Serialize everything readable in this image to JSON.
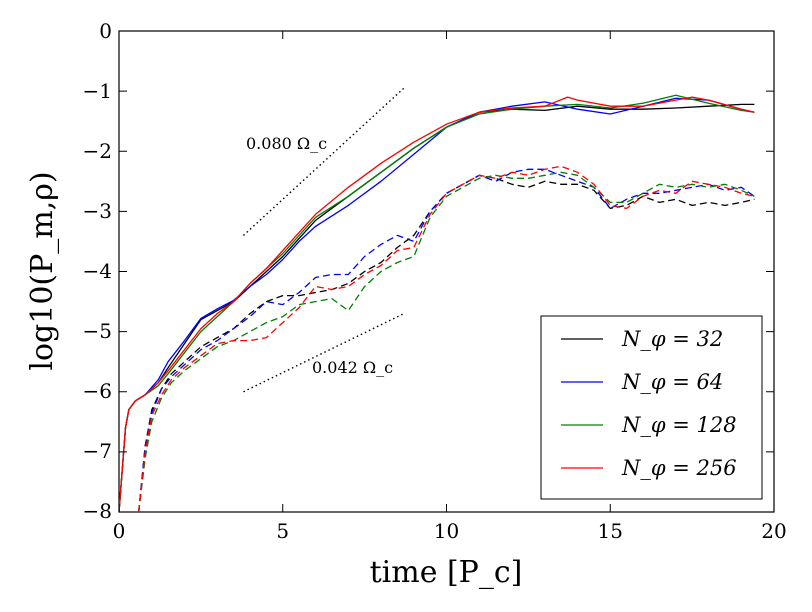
{
  "chart_data": {
    "type": "line",
    "xlabel": "time [P_c]",
    "ylabel": "log10(P_m,ρ)",
    "xlim": [
      0,
      20
    ],
    "ylim": [
      -8,
      0
    ],
    "x_ticks": [
      "0",
      "5",
      "10",
      "15",
      "20"
    ],
    "y_ticks": [
      "0",
      "−1",
      "−2",
      "−3",
      "−4",
      "−5",
      "−6",
      "−7",
      "−8"
    ],
    "grid": false,
    "legend_position": "lower-right",
    "legend": [
      "N_φ = 32",
      "N_φ = 64",
      "N_φ = 128",
      "N_φ = 256"
    ],
    "colors": {
      "N32": "#000000",
      "N64": "#0000ff",
      "N128": "#008000",
      "N256": "#ff0000",
      "reference": "#000000"
    },
    "annotations": [
      {
        "text": "0.080 Ω_c",
        "slope_per_Pc": 0.08
      },
      {
        "text": "0.042 Ω_c",
        "slope_per_Pc": 0.042
      }
    ],
    "reference_lines": [
      {
        "label": "0.080 Ω_c",
        "x": [
          3.8,
          8.7
        ],
        "y": [
          -3.4,
          -0.95
        ]
      },
      {
        "label": "0.042 Ω_c",
        "x": [
          3.8,
          8.7
        ],
        "y": [
          -6.0,
          -4.7
        ]
      }
    ],
    "series": [
      {
        "key": "N32",
        "style": "solid",
        "x": [
          0,
          0.2,
          0.3,
          0.5,
          0.8,
          1.2,
          1.5,
          2.0,
          2.5,
          3.0,
          3.5,
          4.0,
          4.5,
          5.0,
          5.5,
          6.0,
          7.0,
          8.0,
          9.0,
          10.0,
          11.0,
          12.0,
          13.0,
          14.0,
          15.0,
          16.0,
          17.0,
          18.0,
          19.0,
          19.4
        ],
        "y": [
          -8.0,
          -6.6,
          -6.3,
          -6.15,
          -6.05,
          -5.85,
          -5.6,
          -5.2,
          -4.8,
          -4.65,
          -4.5,
          -4.25,
          -4.0,
          -3.75,
          -3.45,
          -3.15,
          -2.75,
          -2.35,
          -1.95,
          -1.6,
          -1.35,
          -1.3,
          -1.32,
          -1.25,
          -1.3,
          -1.3,
          -1.28,
          -1.25,
          -1.22,
          -1.22
        ]
      },
      {
        "key": "N64",
        "style": "solid",
        "x": [
          0,
          0.2,
          0.3,
          0.5,
          0.8,
          1.2,
          1.5,
          2.0,
          2.5,
          3.0,
          3.5,
          4.0,
          4.5,
          5.0,
          5.5,
          6.0,
          7.0,
          8.0,
          9.0,
          10.0,
          11.0,
          12.0,
          13.0,
          14.0,
          15.0,
          16.0,
          17.0,
          18.0,
          19.0,
          19.4
        ],
        "y": [
          -8.0,
          -6.6,
          -6.3,
          -6.15,
          -6.05,
          -5.8,
          -5.5,
          -5.15,
          -4.78,
          -4.62,
          -4.48,
          -4.25,
          -4.05,
          -3.8,
          -3.5,
          -3.25,
          -2.9,
          -2.5,
          -2.05,
          -1.6,
          -1.35,
          -1.25,
          -1.18,
          -1.3,
          -1.38,
          -1.25,
          -1.12,
          -1.15,
          -1.3,
          -1.35
        ]
      },
      {
        "key": "N128",
        "style": "solid",
        "x": [
          0,
          0.2,
          0.3,
          0.5,
          0.8,
          1.2,
          1.5,
          2.0,
          2.5,
          3.0,
          3.5,
          4.0,
          4.5,
          5.0,
          5.5,
          6.0,
          7.0,
          8.0,
          9.0,
          10.0,
          11.0,
          12.0,
          13.0,
          14.0,
          15.0,
          16.0,
          17.0,
          18.0,
          19.0,
          19.4
        ],
        "y": [
          -8.0,
          -6.6,
          -6.3,
          -6.15,
          -6.05,
          -5.9,
          -5.7,
          -5.35,
          -5.0,
          -4.75,
          -4.5,
          -4.2,
          -3.95,
          -3.7,
          -3.4,
          -3.1,
          -2.75,
          -2.35,
          -1.95,
          -1.6,
          -1.38,
          -1.3,
          -1.25,
          -1.22,
          -1.28,
          -1.2,
          -1.07,
          -1.2,
          -1.32,
          -1.35
        ]
      },
      {
        "key": "N256",
        "style": "solid",
        "x": [
          0,
          0.2,
          0.3,
          0.5,
          0.8,
          1.2,
          1.5,
          2.0,
          2.5,
          3.0,
          3.5,
          4.0,
          4.5,
          5.0,
          5.5,
          6.0,
          7.0,
          8.0,
          9.0,
          10.0,
          11.0,
          12.0,
          13.0,
          13.7,
          14.0,
          15.0,
          16.0,
          17.0,
          17.5,
          18.0,
          19.0,
          19.4
        ],
        "y": [
          -8.0,
          -6.6,
          -6.3,
          -6.15,
          -6.05,
          -5.85,
          -5.65,
          -5.3,
          -4.95,
          -4.7,
          -4.5,
          -4.2,
          -3.95,
          -3.65,
          -3.35,
          -3.05,
          -2.6,
          -2.2,
          -1.85,
          -1.55,
          -1.35,
          -1.28,
          -1.25,
          -1.1,
          -1.15,
          -1.25,
          -1.25,
          -1.15,
          -1.1,
          -1.15,
          -1.3,
          -1.35
        ]
      },
      {
        "key": "N32",
        "style": "dashed",
        "x": [
          0.6,
          0.8,
          1.0,
          1.3,
          1.6,
          2.0,
          2.5,
          3.0,
          3.5,
          4.0,
          4.5,
          5.0,
          5.5,
          6.0,
          6.5,
          7.0,
          7.5,
          8.0,
          8.5,
          9.0,
          9.5,
          10.0,
          11.0,
          11.5,
          12.0,
          12.5,
          13.0,
          13.5,
          14.0,
          14.5,
          15.0,
          15.5,
          16.0,
          16.5,
          17.0,
          17.5,
          18.0,
          18.5,
          19.0,
          19.4
        ],
        "y": [
          -8.0,
          -6.9,
          -6.3,
          -5.95,
          -5.7,
          -5.5,
          -5.25,
          -5.1,
          -4.95,
          -4.7,
          -4.5,
          -4.4,
          -4.4,
          -4.35,
          -4.3,
          -4.2,
          -4.0,
          -3.85,
          -3.6,
          -3.4,
          -3.0,
          -2.7,
          -2.4,
          -2.45,
          -2.55,
          -2.6,
          -2.5,
          -2.55,
          -2.55,
          -2.65,
          -2.95,
          -2.9,
          -2.75,
          -2.85,
          -2.8,
          -2.9,
          -2.85,
          -2.9,
          -2.85,
          -2.8
        ]
      },
      {
        "key": "N64",
        "style": "dashed",
        "x": [
          0.6,
          0.8,
          1.0,
          1.3,
          1.6,
          2.0,
          2.5,
          3.0,
          3.5,
          4.0,
          4.5,
          5.0,
          5.5,
          6.0,
          6.5,
          7.0,
          7.5,
          8.0,
          8.5,
          9.0,
          9.5,
          10.0,
          11.0,
          11.5,
          12.0,
          12.5,
          13.0,
          13.5,
          14.0,
          14.5,
          15.0,
          15.5,
          16.0,
          16.5,
          17.0,
          17.5,
          18.0,
          18.5,
          19.0,
          19.4
        ],
        "y": [
          -8.0,
          -6.9,
          -6.35,
          -5.95,
          -5.75,
          -5.55,
          -5.3,
          -5.15,
          -4.95,
          -4.75,
          -4.5,
          -4.55,
          -4.35,
          -4.1,
          -4.05,
          -4.05,
          -3.75,
          -3.55,
          -3.4,
          -3.5,
          -3.0,
          -2.7,
          -2.4,
          -2.5,
          -2.35,
          -2.3,
          -2.3,
          -2.4,
          -2.5,
          -2.6,
          -2.95,
          -2.8,
          -2.7,
          -2.7,
          -2.65,
          -2.6,
          -2.55,
          -2.65,
          -2.6,
          -2.75
        ]
      },
      {
        "key": "N128",
        "style": "dashed",
        "x": [
          0.6,
          0.8,
          1.0,
          1.3,
          1.6,
          2.0,
          2.5,
          3.0,
          3.5,
          4.0,
          4.5,
          5.0,
          5.5,
          6.0,
          6.5,
          7.0,
          7.5,
          8.0,
          8.5,
          9.0,
          9.5,
          10.0,
          11.0,
          11.5,
          12.0,
          12.5,
          13.0,
          13.5,
          14.0,
          14.5,
          15.0,
          15.5,
          16.0,
          16.5,
          17.0,
          17.5,
          18.0,
          18.5,
          19.0,
          19.4
        ],
        "y": [
          -8.0,
          -7.1,
          -6.5,
          -6.1,
          -5.85,
          -5.65,
          -5.45,
          -5.25,
          -5.15,
          -5.0,
          -4.85,
          -4.75,
          -4.55,
          -4.5,
          -4.45,
          -4.65,
          -4.25,
          -4.0,
          -3.85,
          -3.75,
          -3.1,
          -2.75,
          -2.45,
          -2.4,
          -2.45,
          -2.45,
          -2.4,
          -2.35,
          -2.4,
          -2.6,
          -2.85,
          -2.85,
          -2.7,
          -2.55,
          -2.6,
          -2.55,
          -2.6,
          -2.55,
          -2.65,
          -2.75
        ]
      },
      {
        "key": "N256",
        "style": "dashed",
        "x": [
          0.6,
          0.8,
          1.0,
          1.3,
          1.6,
          2.0,
          2.5,
          3.0,
          3.5,
          4.0,
          4.5,
          5.0,
          5.5,
          6.0,
          6.5,
          7.0,
          7.5,
          8.0,
          8.5,
          9.0,
          9.5,
          10.0,
          11.0,
          11.5,
          12.0,
          12.5,
          13.0,
          13.5,
          14.0,
          14.5,
          15.0,
          15.5,
          16.0,
          16.5,
          17.0,
          17.5,
          18.0,
          18.5,
          19.0,
          19.4
        ],
        "y": [
          -8.0,
          -7.0,
          -6.4,
          -6.05,
          -5.8,
          -5.6,
          -5.4,
          -5.2,
          -5.15,
          -5.15,
          -5.1,
          -4.85,
          -4.6,
          -4.25,
          -4.3,
          -4.25,
          -4.05,
          -3.9,
          -3.65,
          -3.6,
          -3.05,
          -2.7,
          -2.4,
          -2.45,
          -2.35,
          -2.4,
          -2.3,
          -2.25,
          -2.35,
          -2.55,
          -2.9,
          -2.95,
          -2.75,
          -2.65,
          -2.7,
          -2.5,
          -2.55,
          -2.6,
          -2.7,
          -2.75
        ]
      }
    ]
  }
}
